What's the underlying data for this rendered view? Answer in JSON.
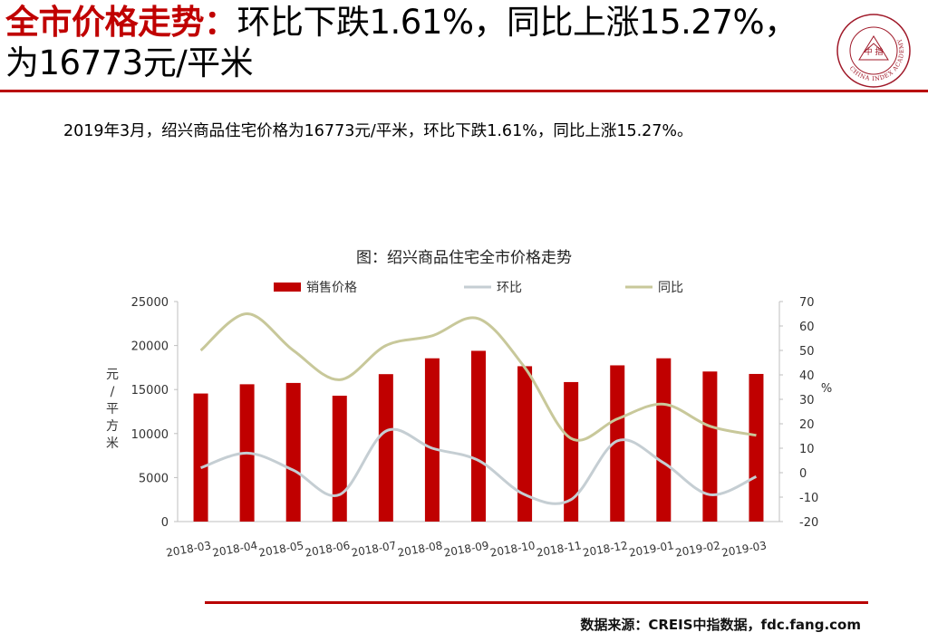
{
  "headline": {
    "highlight": "全市价格走势：",
    "rest": "环比下跌1.61%，同比上涨15.27%，为16773元/平米"
  },
  "logo": {
    "inner_text": "中 指",
    "ring_text": "CHINA INDEX ACADEMY",
    "color": "#a01a2a"
  },
  "summary": "2019年3月，绍兴商品住宅价格为16773元/平米，环比下跌1.61%，同比上涨15.27%。",
  "chart_title": "图：绍兴商品住宅全市价格走势",
  "source": "数据来源：CREIS中指数据，fdc.fang.com",
  "colors": {
    "bar": "#c00000",
    "mom": "#c5ced3",
    "yoy": "#c8c89a",
    "accent": "#b90000"
  },
  "chart_data": {
    "type": "bar",
    "title": "图：绍兴商品住宅全市价格走势",
    "categories": [
      "2018-03",
      "2018-04",
      "2018-05",
      "2018-06",
      "2018-07",
      "2018-08",
      "2018-09",
      "2018-10",
      "2018-11",
      "2018-12",
      "2019-01",
      "2019-02",
      "2019-03"
    ],
    "ylabel": "元/平方米",
    "y2label": "%",
    "ylim": [
      0,
      25000
    ],
    "y2lim": [
      -20,
      70
    ],
    "yticks": [
      "0",
      "5000",
      "10000",
      "15000",
      "20000",
      "25000"
    ],
    "y2ticks": [
      "-20",
      "-10",
      "0",
      "10",
      "20",
      "30",
      "40",
      "50",
      "60",
      "70"
    ],
    "legend_position": "top",
    "grid": false,
    "series": [
      {
        "name": "销售价格",
        "type": "bar",
        "axis": "left",
        "values": [
          14550,
          15600,
          15750,
          14300,
          16750,
          18550,
          19400,
          17650,
          15850,
          17750,
          18550,
          17050,
          16773
        ]
      },
      {
        "name": "环比",
        "type": "line",
        "axis": "right",
        "values": [
          2,
          8,
          1,
          -9,
          17,
          10,
          5,
          -9,
          -11,
          13,
          4,
          -9,
          -1.61
        ]
      },
      {
        "name": "同比",
        "type": "line",
        "axis": "right",
        "values": [
          50,
          65,
          50,
          38,
          52,
          56,
          63,
          43,
          14,
          22,
          28,
          19,
          15.27
        ]
      }
    ]
  }
}
